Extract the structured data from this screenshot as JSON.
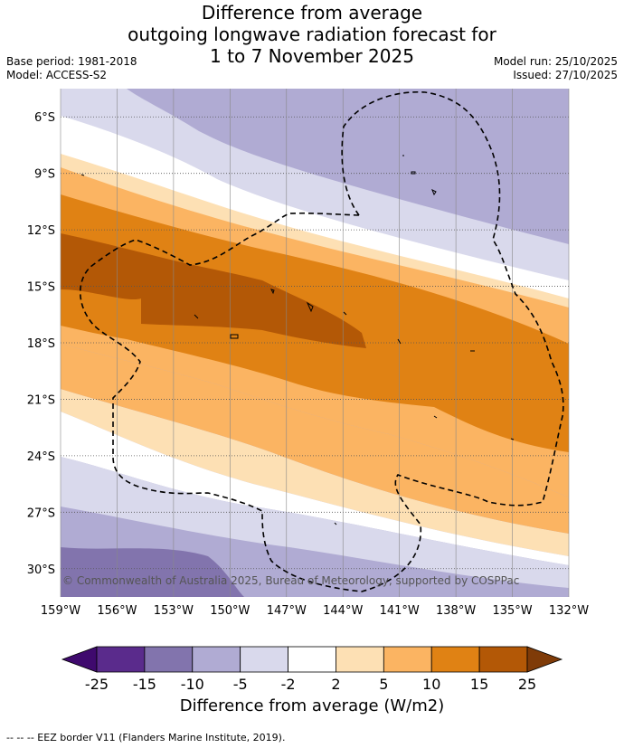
{
  "title": {
    "line1": "Difference from average",
    "line2": "outgoing longwave radiation forecast for",
    "line3": "1 to 7 November 2025"
  },
  "meta": {
    "base_period": "Base period: 1981-2018",
    "model": "Model: ACCESS-S2",
    "model_run": "Model run: 25/10/2025",
    "issued": "Issued: 27/10/2025"
  },
  "map": {
    "lat_labels": [
      "6°S",
      "9°S",
      "12°S",
      "15°S",
      "18°S",
      "21°S",
      "24°S",
      "27°S",
      "30°S"
    ],
    "lon_labels": [
      "159°W",
      "156°W",
      "153°W",
      "150°W",
      "147°W",
      "144°W",
      "141°W",
      "138°W",
      "135°W",
      "132°W"
    ],
    "lat_values": [
      -6,
      -9,
      -12,
      -15,
      -18,
      -21,
      -24,
      -27,
      -30
    ],
    "lon_values": [
      -159,
      -156,
      -153,
      -150,
      -147,
      -144,
      -141,
      -138,
      -135,
      -132
    ],
    "lat_range": [
      -31.5,
      -4.5
    ],
    "lon_range": [
      -159,
      -132
    ],
    "copyright": "© Commonwealth of Australia 2025, Bureau of Meteorology, supported by COSPPac"
  },
  "colorbar": {
    "ticks": [
      "-25",
      "-15",
      "-10",
      "-5",
      "-2",
      "2",
      "5",
      "10",
      "15",
      "25"
    ],
    "colors": [
      "#3f0a6e",
      "#5a2b8c",
      "#8274ad",
      "#b0abd3",
      "#d9d9ec",
      "#ffffff",
      "#fde0b4",
      "#fbb462",
      "#e08214",
      "#b35806",
      "#7f3b08"
    ],
    "label": "Difference from average (W/m2)"
  },
  "footer": "--  --  -- EEZ border V11 (Flanders Marine Institute, 2019)."
}
